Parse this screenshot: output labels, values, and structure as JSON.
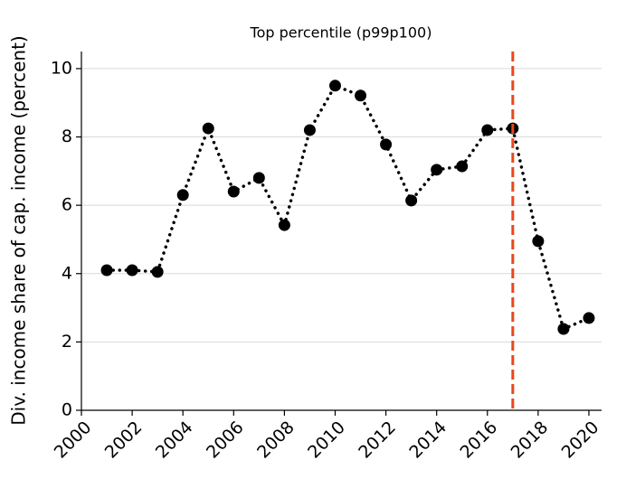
{
  "chart_data": {
    "type": "line",
    "title": "Top percentile (p99p100)",
    "ylabel": "Div. income share of cap. income (percent)",
    "x": [
      2001,
      2002,
      2003,
      2004,
      2005,
      2006,
      2007,
      2008,
      2009,
      2010,
      2011,
      2012,
      2013,
      2014,
      2015,
      2016,
      2017,
      2018,
      2019,
      2020
    ],
    "series": [
      {
        "color": "#000000",
        "values": [
          4.1,
          4.1,
          4.05,
          6.3,
          8.25,
          6.4,
          6.8,
          5.42,
          8.2,
          9.5,
          9.21,
          7.78,
          6.14,
          7.04,
          7.14,
          8.2,
          8.25,
          4.95,
          2.38,
          2.7
        ]
      }
    ],
    "xlim": [
      2000,
      2020.5
    ],
    "xticks": [
      2000,
      2002,
      2004,
      2006,
      2008,
      2010,
      2012,
      2014,
      2016,
      2018,
      2020
    ],
    "ylim": [
      0,
      10.5
    ],
    "yticks": [
      0,
      2,
      4,
      6,
      8,
      10
    ],
    "grid": true,
    "vline": {
      "x": 2017,
      "color": "#e8481c"
    }
  }
}
